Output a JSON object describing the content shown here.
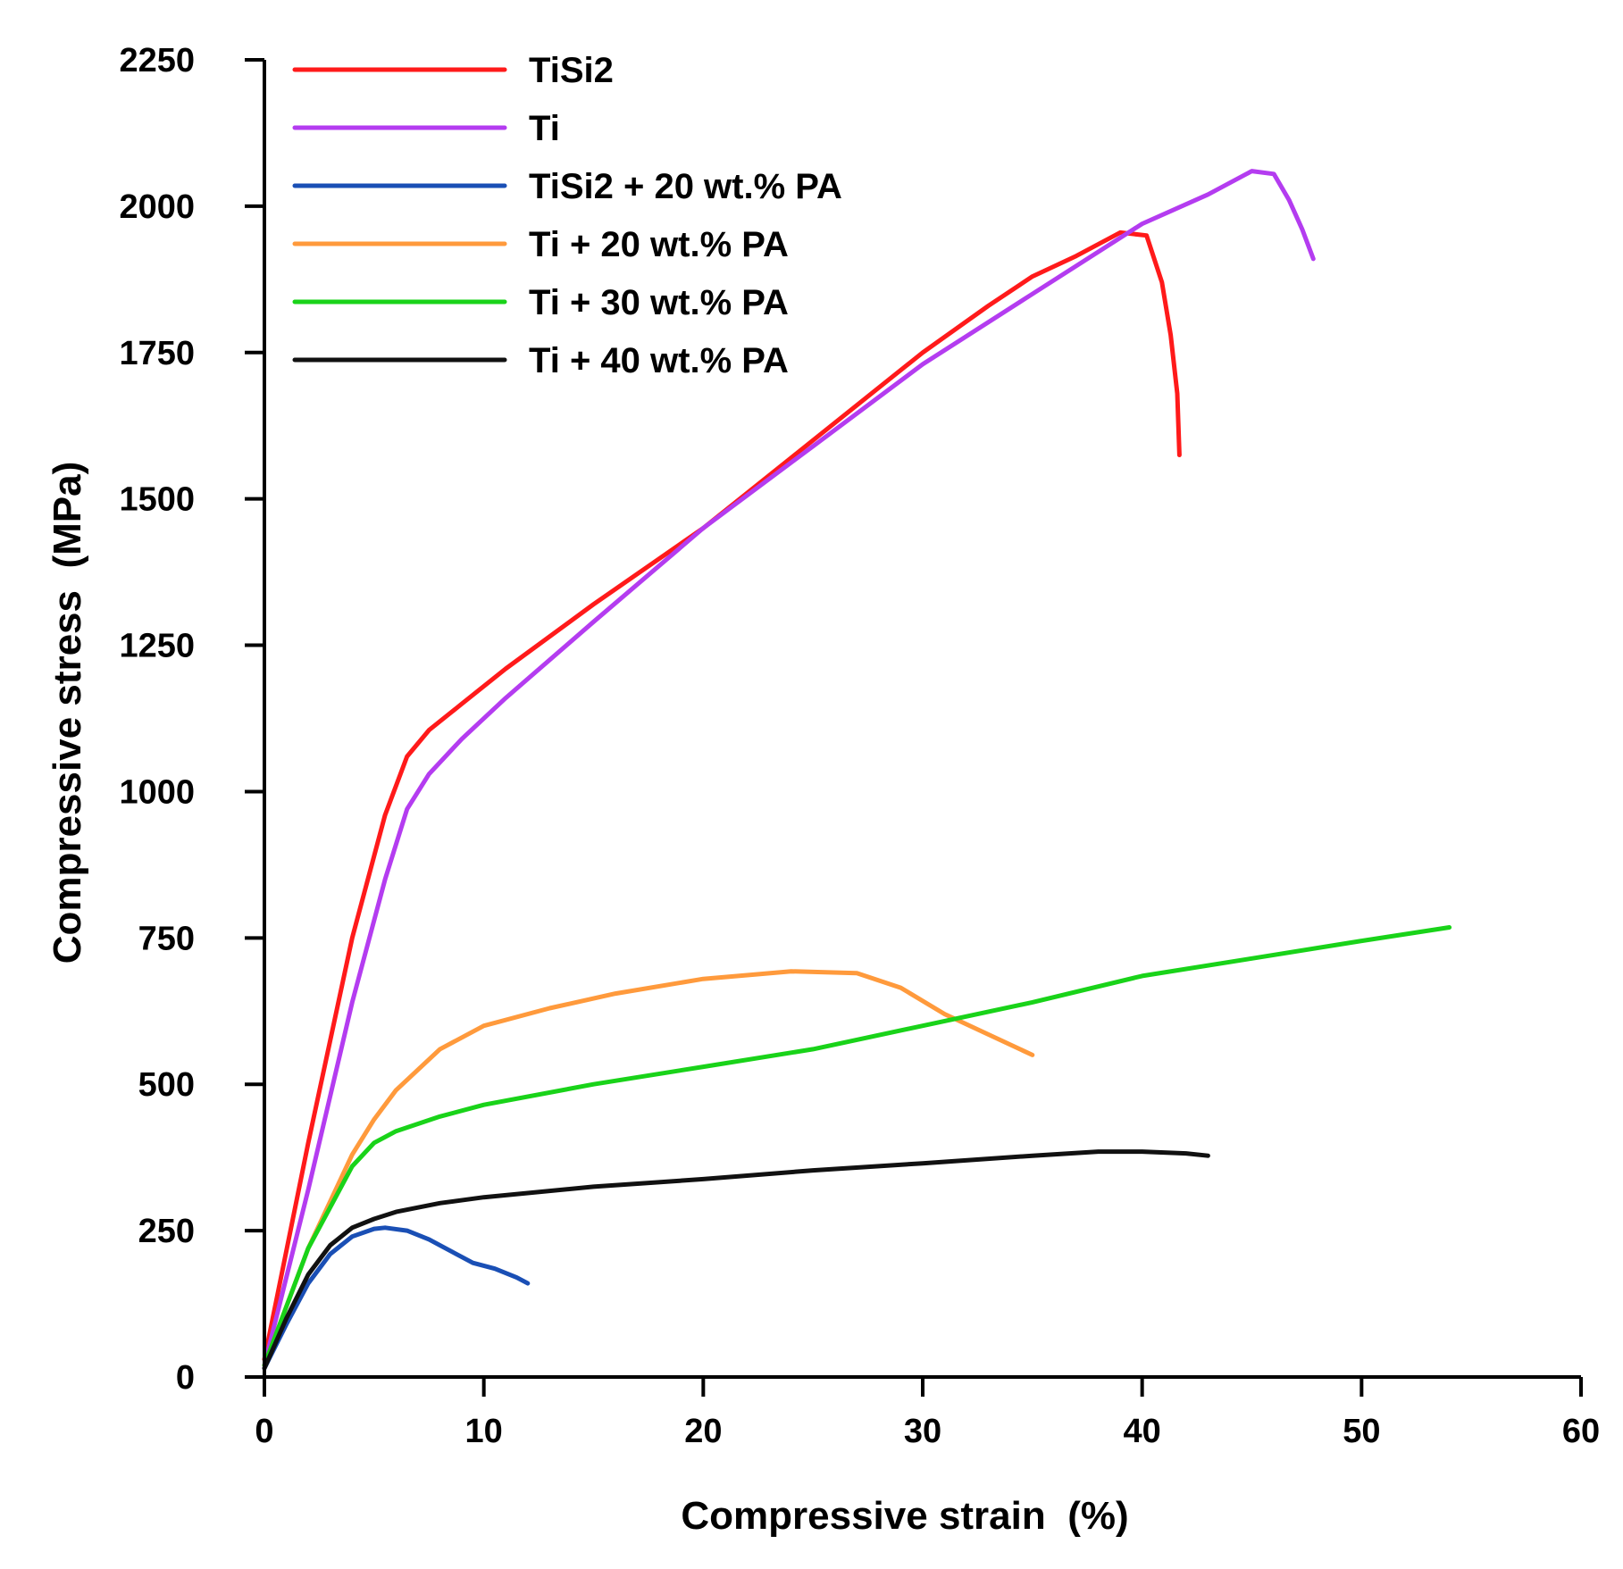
{
  "chart_data": {
    "type": "line",
    "title": "",
    "xlabel": "Compressive strain  (%)",
    "ylabel": "Compressive stress  (MPa)",
    "xlim": [
      0,
      60
    ],
    "ylim": [
      0,
      2250
    ],
    "xticks": [
      0,
      10,
      20,
      30,
      40,
      50,
      60
    ],
    "yticks": [
      0,
      250,
      500,
      750,
      1000,
      1250,
      1500,
      1750,
      2000,
      2250
    ],
    "grid": false,
    "legend_position": "top-left",
    "series": [
      {
        "name": "TiSi2",
        "color": "#ff1a1a",
        "x": [
          0,
          2,
          4,
          5.5,
          6.5,
          7.5,
          9,
          11,
          15,
          20,
          25,
          30,
          33,
          35,
          37,
          39,
          40.2,
          40.9,
          41.3,
          41.6,
          41.7
        ],
        "y": [
          30,
          400,
          750,
          960,
          1060,
          1105,
          1150,
          1210,
          1320,
          1450,
          1600,
          1750,
          1830,
          1880,
          1915,
          1955,
          1950,
          1870,
          1780,
          1680,
          1575
        ]
      },
      {
        "name": "Ti",
        "color": "#b43cf0",
        "x": [
          0,
          2,
          4,
          5.5,
          6.5,
          7.5,
          9,
          11,
          15,
          20,
          25,
          30,
          35,
          40,
          43,
          45,
          46,
          46.7,
          47.3,
          47.8
        ],
        "y": [
          20,
          320,
          640,
          850,
          970,
          1030,
          1090,
          1160,
          1290,
          1450,
          1590,
          1730,
          1850,
          1970,
          2020,
          2060,
          2055,
          2010,
          1960,
          1910
        ]
      },
      {
        "name": "TiSi2 + 20 wt.% PA",
        "color": "#1a4fb5",
        "x": [
          0,
          1,
          2,
          3,
          4,
          5,
          5.5,
          6.5,
          7.5,
          8.5,
          9.5,
          10.5,
          11.5,
          12
        ],
        "y": [
          15,
          90,
          160,
          210,
          240,
          253,
          255,
          250,
          235,
          215,
          195,
          185,
          170,
          160
        ]
      },
      {
        "name": "Ti + 20 wt.% PA",
        "color": "#ff9a3c",
        "x": [
          0,
          2,
          4,
          5,
          6,
          8,
          10,
          13,
          16,
          20,
          24,
          27,
          29,
          31,
          33,
          35
        ],
        "y": [
          20,
          220,
          380,
          440,
          490,
          560,
          600,
          630,
          655,
          680,
          693,
          690,
          665,
          620,
          585,
          550
        ]
      },
      {
        "name": "Ti + 30 wt.% PA",
        "color": "#19d319",
        "x": [
          0,
          2,
          4,
          5,
          6,
          8,
          10,
          15,
          20,
          25,
          30,
          35,
          40,
          45,
          50,
          54
        ],
        "y": [
          20,
          220,
          360,
          400,
          420,
          445,
          465,
          500,
          530,
          560,
          600,
          640,
          685,
          715,
          745,
          768
        ]
      },
      {
        "name": "Ti + 40 wt.% PA",
        "color": "#111111",
        "x": [
          0,
          1,
          2,
          3,
          4,
          5,
          6,
          8,
          10,
          15,
          20,
          25,
          30,
          35,
          38,
          40,
          42,
          43
        ],
        "y": [
          15,
          100,
          175,
          225,
          255,
          270,
          282,
          297,
          307,
          325,
          338,
          353,
          365,
          378,
          385,
          385,
          382,
          378
        ]
      }
    ]
  }
}
